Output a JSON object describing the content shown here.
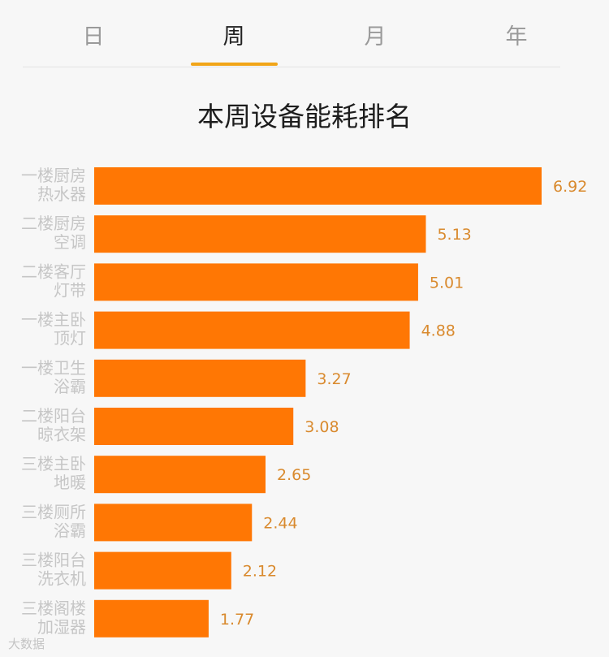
{
  "tabs": [
    {
      "label": "日",
      "active": false
    },
    {
      "label": "周",
      "active": true
    },
    {
      "label": "月",
      "active": false
    },
    {
      "label": "年",
      "active": false
    }
  ],
  "colors": {
    "bar": "#ff7704",
    "value_label": "#d98a2e",
    "category_label": "#c6c6c6",
    "tab_indicator": "#f1a518"
  },
  "watermark": "大数据",
  "chart_data": {
    "type": "bar",
    "orientation": "horizontal",
    "title": "本周设备能耗排名",
    "categories": [
      [
        "一楼厨房",
        "热水器"
      ],
      [
        "二楼厨房",
        "空调"
      ],
      [
        "二楼客厅",
        "灯带"
      ],
      [
        "一楼主卧",
        "顶灯"
      ],
      [
        "一楼卫生",
        "浴霸"
      ],
      [
        "二楼阳台",
        "晾衣架"
      ],
      [
        "三楼主卧",
        "地暖"
      ],
      [
        "三楼厕所",
        "浴霸"
      ],
      [
        "三楼阳台",
        "洗衣机"
      ],
      [
        "三楼阁楼",
        "加湿器"
      ]
    ],
    "values": [
      6.92,
      5.13,
      5.01,
      4.88,
      3.27,
      3.08,
      2.65,
      2.44,
      2.12,
      1.77
    ],
    "value_labels": [
      "6.92",
      "5.13",
      "5.01",
      "4.88",
      "3.27",
      "3.08",
      "2.65",
      "2.44",
      "2.12",
      "1.77"
    ],
    "xlim": [
      0,
      6.92
    ],
    "grid": false,
    "legend": "none"
  }
}
